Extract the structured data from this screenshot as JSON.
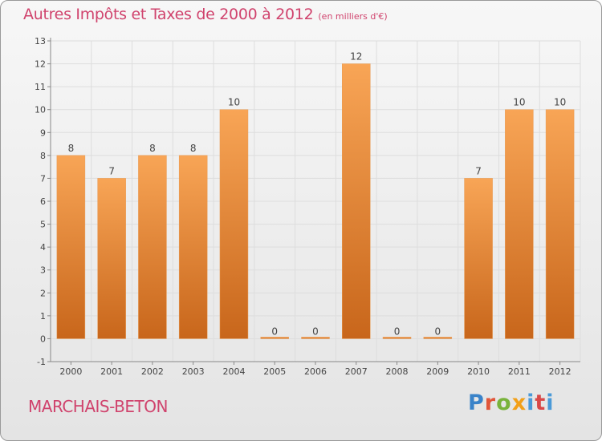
{
  "header": {
    "title": "Autres Impôts et Taxes de 2000 à 2012",
    "unit": "(en milliers d'€)"
  },
  "footer": {
    "commune": "MARCHAIS-BETON",
    "brand": [
      "P",
      "r",
      "o",
      "x",
      "i",
      "t",
      "i"
    ]
  },
  "colors": {
    "bar_top": "#f8a556",
    "bar_bottom": "#c8661b",
    "title": "#d0436d",
    "grid": "#dddddd",
    "axis": "#888888",
    "text": "#444444"
  },
  "chart_data": {
    "type": "bar",
    "title": "Autres Impôts et Taxes de 2000 à 2012",
    "subtitle": "(en milliers d'€)",
    "categories": [
      "2000",
      "2001",
      "2002",
      "2003",
      "2004",
      "2005",
      "2006",
      "2007",
      "2008",
      "2009",
      "2010",
      "2011",
      "2012"
    ],
    "values": [
      8,
      7,
      8,
      8,
      10,
      0,
      0,
      12,
      0,
      0,
      7,
      10,
      10
    ],
    "ylim": [
      -1,
      13
    ],
    "yticks": [
      -1,
      0,
      1,
      2,
      3,
      4,
      5,
      6,
      7,
      8,
      9,
      10,
      11,
      12,
      13
    ],
    "grid": true,
    "xlabel": "",
    "ylabel": ""
  }
}
